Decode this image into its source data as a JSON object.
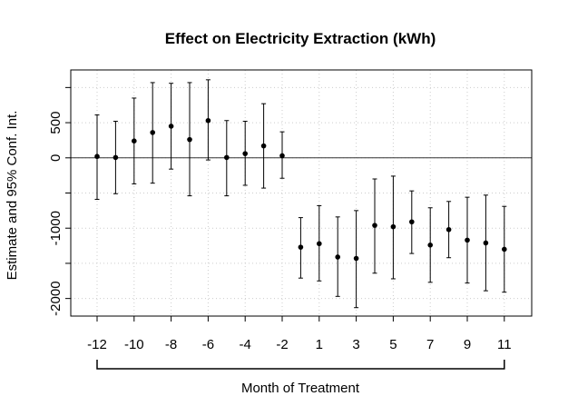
{
  "chart_data": {
    "type": "scatter",
    "title": "Effect on Electricity Extraction (kWh)",
    "xlabel": "Month of Treatment",
    "ylabel": "Estimate and 95% Conf. Int.",
    "x_tick_labels": [
      -12,
      -10,
      -8,
      -6,
      -4,
      -2,
      1,
      3,
      5,
      7,
      9,
      11
    ],
    "y_tick_labels": [
      -2000,
      -1000,
      0,
      500
    ],
    "ylim": [
      -2250,
      1250
    ],
    "grid": true,
    "zero_line": true,
    "points": [
      {
        "month": -12,
        "estimate": 20,
        "lower": -590,
        "upper": 610
      },
      {
        "month": -11,
        "estimate": 5,
        "lower": -510,
        "upper": 520
      },
      {
        "month": -10,
        "estimate": 240,
        "lower": -370,
        "upper": 850
      },
      {
        "month": -9,
        "estimate": 360,
        "lower": -360,
        "upper": 1070
      },
      {
        "month": -8,
        "estimate": 450,
        "lower": -160,
        "upper": 1060
      },
      {
        "month": -7,
        "estimate": 260,
        "lower": -540,
        "upper": 1070
      },
      {
        "month": -6,
        "estimate": 530,
        "lower": -30,
        "upper": 1110
      },
      {
        "month": -5,
        "estimate": 5,
        "lower": -540,
        "upper": 530
      },
      {
        "month": -4,
        "estimate": 60,
        "lower": -390,
        "upper": 520
      },
      {
        "month": -3,
        "estimate": 170,
        "lower": -430,
        "upper": 770
      },
      {
        "month": -2,
        "estimate": 30,
        "lower": -290,
        "upper": 370
      },
      {
        "month": 0,
        "estimate": -1270,
        "lower": -1710,
        "upper": -850
      },
      {
        "month": 1,
        "estimate": -1220,
        "lower": -1750,
        "upper": -680
      },
      {
        "month": 2,
        "estimate": -1410,
        "lower": -1970,
        "upper": -840
      },
      {
        "month": 3,
        "estimate": -1430,
        "lower": -2130,
        "upper": -750
      },
      {
        "month": 4,
        "estimate": -960,
        "lower": -1640,
        "upper": -300
      },
      {
        "month": 5,
        "estimate": -980,
        "lower": -1720,
        "upper": -260
      },
      {
        "month": 6,
        "estimate": -910,
        "lower": -1360,
        "upper": -470
      },
      {
        "month": 7,
        "estimate": -1240,
        "lower": -1770,
        "upper": -710
      },
      {
        "month": 8,
        "estimate": -1020,
        "lower": -1420,
        "upper": -620
      },
      {
        "month": 9,
        "estimate": -1170,
        "lower": -1780,
        "upper": -560
      },
      {
        "month": 10,
        "estimate": -1210,
        "lower": -1890,
        "upper": -530
      },
      {
        "month": 11,
        "estimate": -1300,
        "lower": -1910,
        "upper": -690
      }
    ],
    "colors": {
      "point": "#000000",
      "grid": "#cccccc",
      "frame": "#000000"
    }
  }
}
